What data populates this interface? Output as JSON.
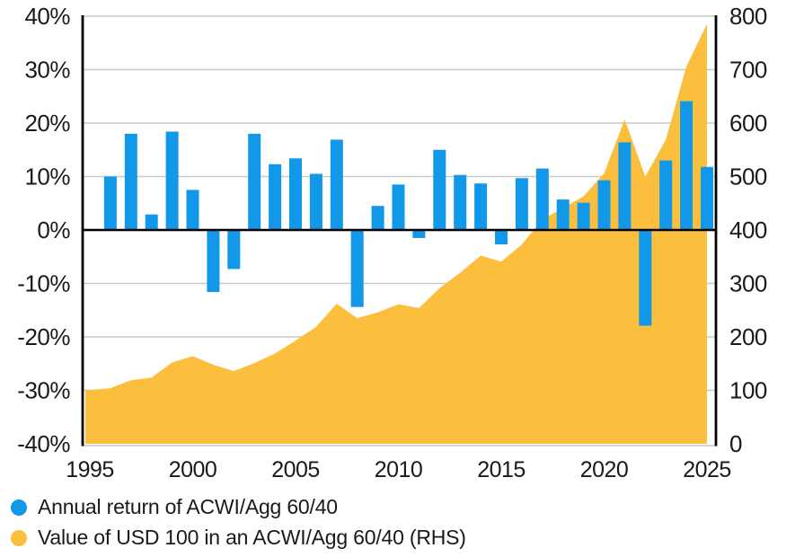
{
  "page": {
    "background": "#ffffff"
  },
  "chart_data": {
    "type": "combo-bar-area",
    "title": "",
    "grid_color": "#c9c9c9",
    "zero_line_color": "#000000",
    "axis_line_color": "#000000",
    "text_color": "#1a1a1a",
    "series": [
      {
        "name": "Annual return of ACWI/Agg 60/40",
        "type": "bar",
        "axis": "left",
        "unit": "%",
        "color": "#1298e8",
        "years": [
          1996,
          1997,
          1998,
          1999,
          2000,
          2001,
          2002,
          2003,
          2004,
          2005,
          2006,
          2007,
          2008,
          2009,
          2010,
          2011,
          2012,
          2013,
          2014,
          2015,
          2016,
          2017,
          2018,
          2019,
          2020,
          2021,
          2022,
          2023,
          2024,
          2025
        ],
        "values": [
          10.0,
          18.0,
          2.9,
          18.4,
          7.5,
          -11.6,
          -7.3,
          18.0,
          12.3,
          13.4,
          10.5,
          16.9,
          -14.4,
          4.5,
          8.5,
          -1.5,
          15.0,
          10.3,
          8.7,
          -2.7,
          9.7,
          11.5,
          5.7,
          5.1,
          9.3,
          16.4,
          -17.9,
          13.0,
          24.1,
          11.8
        ]
      },
      {
        "name": "Value of USD 100 in an ACWI/Agg 60/40 (RHS)",
        "type": "area",
        "axis": "right",
        "unit": "USD",
        "color": "#fcbe3d",
        "years": [
          1995,
          1996,
          1997,
          1998,
          1999,
          2000,
          2001,
          2002,
          2003,
          2004,
          2005,
          2006,
          2007,
          2008,
          2009,
          2010,
          2011,
          2012,
          2013,
          2014,
          2015,
          2016,
          2017,
          2018,
          2019,
          2020,
          2021,
          2022,
          2023,
          2024,
          2025
        ],
        "values": [
          100,
          104,
          119,
          124,
          152,
          164,
          148,
          136,
          151,
          169,
          193,
          219,
          262,
          235,
          246,
          261,
          254,
          291,
          320,
          352,
          341,
          373,
          420,
          441,
          463,
          506,
          607,
          500,
          569,
          706,
          785
        ]
      }
    ],
    "left_axis": {
      "min": -40,
      "max": 40,
      "step": 10,
      "tick_labels": [
        "40%",
        "30%",
        "20%",
        "10%",
        "0%",
        "-10%",
        "-20%",
        "-30%",
        "-40%"
      ]
    },
    "right_axis": {
      "min": 0,
      "max": 800,
      "step": 100,
      "tick_labels": [
        "800",
        "700",
        "600",
        "500",
        "400",
        "300",
        "200",
        "100",
        "0"
      ]
    },
    "x_axis": {
      "tick_labels": [
        "1995",
        "2000",
        "2005",
        "2010",
        "2015",
        "2020",
        "2025"
      ]
    },
    "legend": [
      {
        "label": "Annual return of ACWI/Agg 60/40",
        "color": "#1298e8"
      },
      {
        "label": "Value of USD 100 in an ACWI/Agg 60/40 (RHS)",
        "color": "#fcbe3d"
      }
    ]
  }
}
